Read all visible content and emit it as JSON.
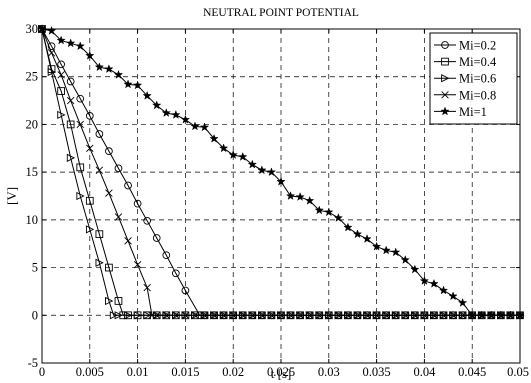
{
  "chart_data": {
    "type": "line",
    "title": "NEUTRAL POINT POTENTIAL",
    "xlabel": "t [s]",
    "ylabel": "[V]",
    "xlim": [
      0,
      0.05
    ],
    "ylim": [
      -5,
      30
    ],
    "x_ticks": [
      "0",
      "0.005",
      "0.01",
      "0.015",
      "0.02",
      "0.025",
      "0.03",
      "0.035",
      "0.04",
      "0.045",
      "0.05"
    ],
    "y_ticks": [
      "-5",
      "0",
      "5",
      "10",
      "15",
      "20",
      "25",
      "30"
    ],
    "grid": true,
    "legend_position": "top-right",
    "series": [
      {
        "name": "Mi=0.2",
        "marker": "circle",
        "points": [
          [
            0,
            30
          ],
          [
            0.001,
            28.2
          ],
          [
            0.002,
            26.3
          ],
          [
            0.003,
            24.5
          ],
          [
            0.004,
            22.7
          ],
          [
            0.005,
            20.9
          ],
          [
            0.006,
            19.0
          ],
          [
            0.007,
            17.2
          ],
          [
            0.008,
            15.4
          ],
          [
            0.009,
            13.6
          ],
          [
            0.01,
            11.7
          ],
          [
            0.011,
            9.9
          ],
          [
            0.012,
            8.1
          ],
          [
            0.013,
            6.3
          ],
          [
            0.014,
            4.4
          ],
          [
            0.015,
            2.6
          ],
          [
            0.0165,
            0
          ],
          [
            0.05,
            0
          ]
        ]
      },
      {
        "name": "Mi=0.4",
        "marker": "square",
        "points": [
          [
            0,
            30
          ],
          [
            0.001,
            25.8
          ],
          [
            0.002,
            23.5
          ],
          [
            0.003,
            20.0
          ],
          [
            0.004,
            15.5
          ],
          [
            0.005,
            12.0
          ],
          [
            0.006,
            8.5
          ],
          [
            0.007,
            5.0
          ],
          [
            0.008,
            1.5
          ],
          [
            0.0085,
            0
          ],
          [
            0.05,
            0
          ]
        ]
      },
      {
        "name": "Mi=0.6",
        "marker": "triangle-right",
        "points": [
          [
            0,
            30
          ],
          [
            0.001,
            25.5
          ],
          [
            0.002,
            21.0
          ],
          [
            0.003,
            16.5
          ],
          [
            0.004,
            12.5
          ],
          [
            0.005,
            9.0
          ],
          [
            0.006,
            5.5
          ],
          [
            0.007,
            1.5
          ],
          [
            0.0075,
            0
          ],
          [
            0.05,
            0
          ]
        ]
      },
      {
        "name": "Mi=0.8",
        "marker": "x",
        "points": [
          [
            0,
            30
          ],
          [
            0.001,
            27.5
          ],
          [
            0.002,
            25.2
          ],
          [
            0.003,
            22.5
          ],
          [
            0.004,
            20.0
          ],
          [
            0.005,
            17.5
          ],
          [
            0.006,
            15.2
          ],
          [
            0.007,
            12.8
          ],
          [
            0.008,
            10.3
          ],
          [
            0.009,
            7.8
          ],
          [
            0.01,
            5.3
          ],
          [
            0.011,
            2.9
          ],
          [
            0.0115,
            0
          ],
          [
            0.05,
            0
          ]
        ]
      },
      {
        "name": "Mi=1",
        "marker": "star",
        "points": [
          [
            0,
            30
          ],
          [
            0.001,
            29.8
          ],
          [
            0.002,
            28.8
          ],
          [
            0.003,
            28.5
          ],
          [
            0.004,
            28.2
          ],
          [
            0.005,
            27.2
          ],
          [
            0.006,
            26.0
          ],
          [
            0.007,
            25.8
          ],
          [
            0.008,
            25.2
          ],
          [
            0.009,
            24.2
          ],
          [
            0.01,
            24.1
          ],
          [
            0.011,
            23.0
          ],
          [
            0.012,
            22.0
          ],
          [
            0.013,
            21.2
          ],
          [
            0.014,
            21.0
          ],
          [
            0.015,
            20.5
          ],
          [
            0.016,
            19.8
          ],
          [
            0.017,
            19.7
          ],
          [
            0.018,
            18.5
          ],
          [
            0.019,
            17.5
          ],
          [
            0.02,
            16.8
          ],
          [
            0.021,
            16.6
          ],
          [
            0.022,
            15.8
          ],
          [
            0.023,
            15.2
          ],
          [
            0.024,
            15.0
          ],
          [
            0.025,
            14.0
          ],
          [
            0.026,
            12.5
          ],
          [
            0.027,
            12.4
          ],
          [
            0.028,
            12.0
          ],
          [
            0.029,
            11.0
          ],
          [
            0.03,
            10.8
          ],
          [
            0.031,
            10.2
          ],
          [
            0.032,
            9.2
          ],
          [
            0.033,
            8.5
          ],
          [
            0.034,
            8.0
          ],
          [
            0.035,
            7.2
          ],
          [
            0.036,
            6.8
          ],
          [
            0.037,
            6.6
          ],
          [
            0.038,
            5.8
          ],
          [
            0.039,
            4.8
          ],
          [
            0.04,
            3.6
          ],
          [
            0.041,
            3.3
          ],
          [
            0.042,
            2.6
          ],
          [
            0.043,
            2.0
          ],
          [
            0.044,
            1.3
          ],
          [
            0.045,
            0
          ],
          [
            0.05,
            0
          ]
        ]
      }
    ]
  }
}
